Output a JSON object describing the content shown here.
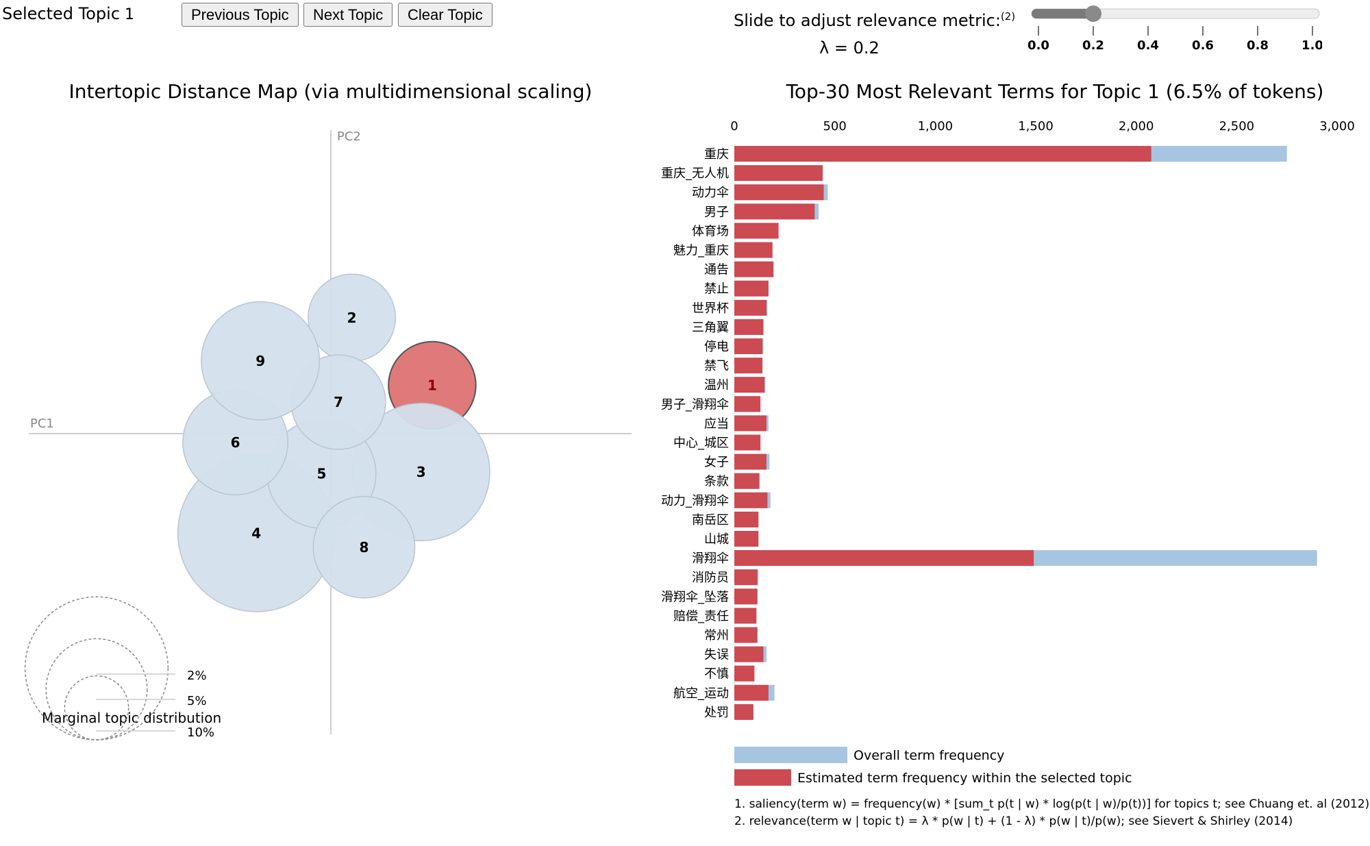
{
  "controls": {
    "selected_topic_label": "Selected Topic:",
    "selected_topic_value": "1",
    "prev_label": "Previous Topic",
    "next_label": "Next Topic",
    "clear_label": "Clear Topic"
  },
  "slider": {
    "label": "Slide to adjust relevance metric:",
    "footnote_ref": "(2)",
    "lambda_text": "λ = 0.2",
    "value": 0.2,
    "min": 0,
    "max": 1,
    "ticks": [
      "0.0",
      "0.2",
      "0.4",
      "0.6",
      "0.8",
      "1.0"
    ]
  },
  "colors": {
    "bubble_fill": "#d3e0ec",
    "bubble_stroke": "#b8c6d2",
    "selected_fill": "#e07a7a",
    "selected_stroke": "#555555",
    "overall_bar": "#a6c5e0",
    "topic_bar": "#cc4a52",
    "axis_line": "#cccccc"
  },
  "chart_data": [
    {
      "type": "scatter",
      "title": "Intertopic Distance Map (via multidimensional scaling)",
      "xlabel": "PC1",
      "ylabel": "PC2",
      "selected_topic": 1,
      "topics": [
        {
          "id": "1",
          "x": 0.174,
          "y": 0.083,
          "share": 6.5
        },
        {
          "id": "2",
          "x": 0.036,
          "y": 0.199,
          "share": 6.5
        },
        {
          "id": "3",
          "x": 0.155,
          "y": -0.066,
          "share": 16.1
        },
        {
          "id": "4",
          "x": -0.128,
          "y": -0.171,
          "share": 21.0
        },
        {
          "id": "5",
          "x": -0.016,
          "y": -0.069,
          "share": 10.1
        },
        {
          "id": "6",
          "x": -0.164,
          "y": -0.015,
          "share": 9.4
        },
        {
          "id": "7",
          "x": 0.013,
          "y": 0.054,
          "share": 7.6
        },
        {
          "id": "8",
          "x": 0.057,
          "y": -0.195,
          "share": 8.8
        },
        {
          "id": "9",
          "x": -0.121,
          "y": 0.125,
          "share": 11.9
        }
      ],
      "marginal_legend": {
        "title": "Marginal topic distribution",
        "levels": [
          {
            "label": "2%",
            "value": 2
          },
          {
            "label": "5%",
            "value": 5
          },
          {
            "label": "10%",
            "value": 10
          }
        ]
      }
    },
    {
      "type": "bar",
      "title": "Top-30 Most Relevant Terms for Topic 1 (6.5% of tokens)",
      "xlim": [
        0,
        3000
      ],
      "xticks": [
        0,
        500,
        1000,
        1500,
        2000,
        2500,
        3000
      ],
      "xtick_labels": [
        "0",
        "500",
        "1,000",
        "1,500",
        "2,000",
        "2,500",
        "3,000"
      ],
      "legend": {
        "overall": "Overall term frequency",
        "estimated": "Estimated term frequency within the selected topic"
      },
      "terms": [
        "重庆",
        "重庆_无人机",
        "动力伞",
        "男子",
        "体育场",
        "魅力_重庆",
        "通告",
        "禁止",
        "世界杯",
        "三角翼",
        "停电",
        "禁飞",
        "温州",
        "男子_滑翔伞",
        "应当",
        "中心_城区",
        "女子",
        "条款",
        "动力_滑翔伞",
        "南岳区",
        "山城",
        "滑翔伞",
        "消防员",
        "滑翔伞_坠落",
        "赔偿_责任",
        "常州",
        "失误",
        "不慎",
        "航空_运动",
        "处罚"
      ],
      "overall": [
        2750,
        440,
        465,
        420,
        220,
        190,
        195,
        170,
        165,
        145,
        145,
        140,
        155,
        130,
        170,
        130,
        175,
        125,
        180,
        120,
        120,
        2900,
        120,
        115,
        110,
        115,
        160,
        100,
        200,
        95
      ],
      "estimated": [
        2075,
        440,
        445,
        400,
        220,
        190,
        195,
        170,
        160,
        145,
        140,
        140,
        150,
        130,
        160,
        130,
        160,
        125,
        165,
        120,
        120,
        1490,
        115,
        115,
        110,
        115,
        145,
        100,
        170,
        95
      ]
    }
  ],
  "footnotes": [
    "1. saliency(term w) = frequency(w) * [sum_t p(t | w) * log(p(t | w)/p(t))] for topics t; see Chuang et. al (2012)",
    "2. relevance(term w | topic t) = λ * p(w | t) + (1 - λ) * p(w | t)/p(w); see Sievert & Shirley (2014)"
  ]
}
